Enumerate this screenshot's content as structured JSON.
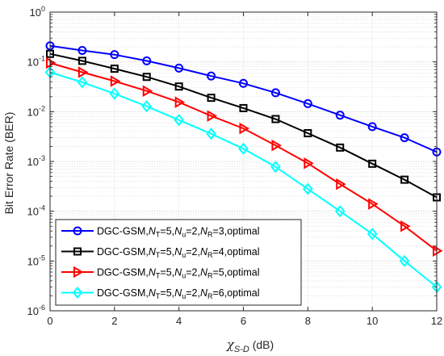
{
  "chart_data": {
    "type": "line",
    "title": "",
    "xlabel_symbol": "χ",
    "xlabel_subscript": "S-D",
    "xlabel_unit": " (dB)",
    "ylabel": "Bit Error Rate (BER)",
    "xlim": [
      0,
      12
    ],
    "ylim": [
      1e-06,
      1
    ],
    "y_scale": "log",
    "x_ticks": [
      0,
      2,
      4,
      6,
      8,
      10,
      12
    ],
    "y_ticks": [
      {
        "exp": "-6",
        "value": 1e-06
      },
      {
        "exp": "-5",
        "value": 1e-05
      },
      {
        "exp": "-4",
        "value": 0.0001
      },
      {
        "exp": "-3",
        "value": 0.001
      },
      {
        "exp": "-2",
        "value": 0.01
      },
      {
        "exp": "-1",
        "value": 0.1
      },
      {
        "exp": "0",
        "value": 1
      }
    ],
    "y_tick_base": "10",
    "grid": true,
    "legend_placement": "bottom-left",
    "x": [
      0,
      1,
      2,
      3,
      4,
      5,
      6,
      7,
      8,
      9,
      10,
      11,
      12
    ],
    "series": [
      {
        "nr": "3",
        "color": "#0000ff",
        "marker": "circle",
        "values": [
          0.21,
          0.17,
          0.14,
          0.105,
          0.075,
          0.052,
          0.037,
          0.024,
          0.0145,
          0.0085,
          0.005,
          0.003,
          0.00155
        ]
      },
      {
        "nr": "4",
        "color": "#000000",
        "marker": "square",
        "values": [
          0.145,
          0.105,
          0.073,
          0.05,
          0.032,
          0.019,
          0.0118,
          0.0071,
          0.0037,
          0.0019,
          0.0009,
          0.00043,
          0.00019
        ]
      },
      {
        "nr": "5",
        "color": "#ff0000",
        "marker": "triangle-right",
        "values": [
          0.095,
          0.062,
          0.041,
          0.026,
          0.0155,
          0.0082,
          0.0046,
          0.0021,
          0.00092,
          0.00035,
          0.00014,
          5e-05,
          1.6e-05
        ]
      },
      {
        "nr": "6",
        "color": "#00ffff",
        "marker": "diamond",
        "values": [
          0.062,
          0.039,
          0.023,
          0.0128,
          0.0068,
          0.0036,
          0.0018,
          0.00078,
          0.00028,
          0.0001,
          3.5e-05,
          1e-05,
          3e-06
        ]
      }
    ],
    "legend_parts": {
      "prefix": "DGC-GSM,",
      "n": "N",
      "nt_sub": "T",
      "nt_val": "=5,",
      "nu_sub": "u",
      "nu_val": "=2,",
      "nr_sub": "R",
      "eq": "=",
      "suffix": ",optimal"
    }
  }
}
